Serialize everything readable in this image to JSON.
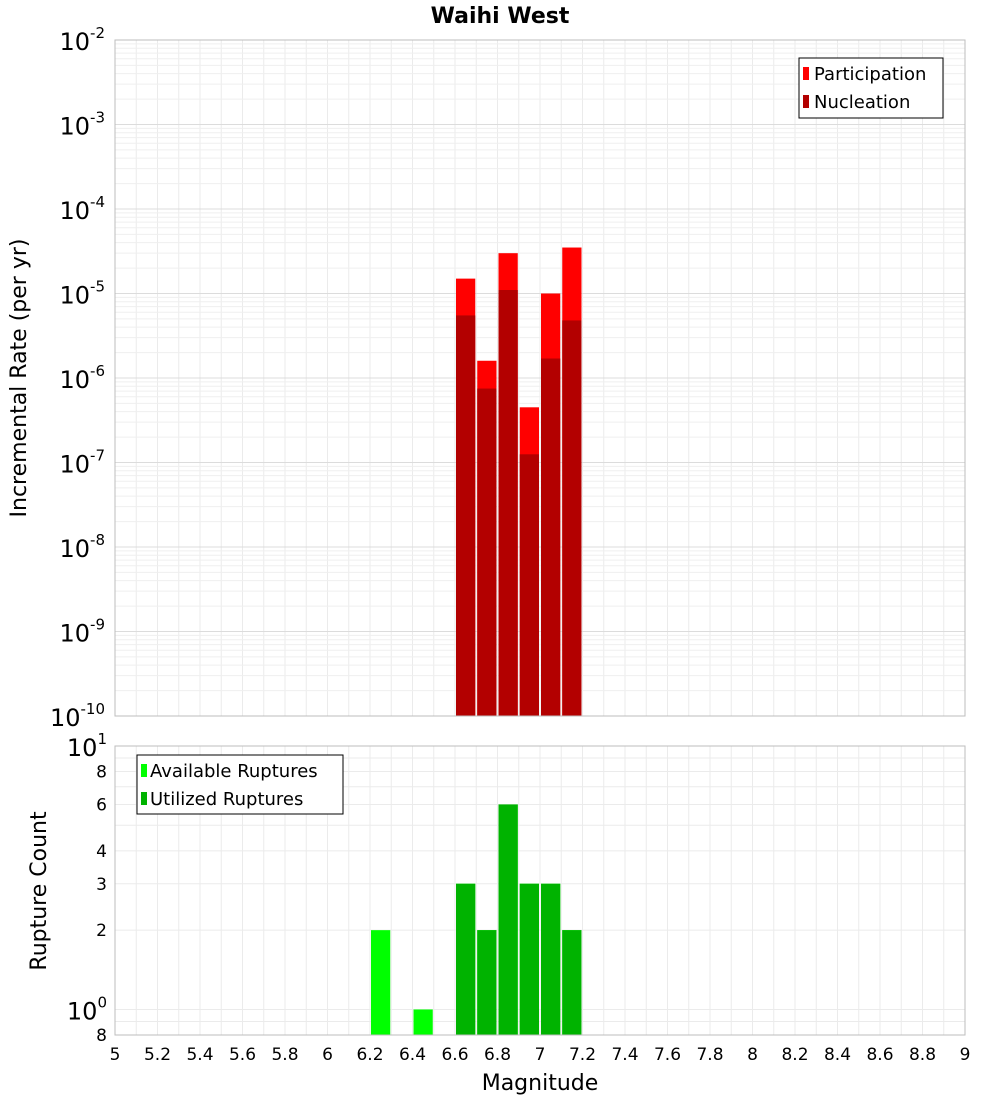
{
  "chart_data": {
    "title": "Waihi West",
    "xlabel": "Magnitude",
    "xlim": [
      5,
      9
    ],
    "xticks": [
      "5",
      "5.2",
      "5.4",
      "5.6",
      "5.8",
      "6",
      "6.2",
      "6.4",
      "6.6",
      "6.8",
      "7",
      "7.2",
      "7.4",
      "7.6",
      "7.8",
      "8",
      "8.2",
      "8.4",
      "8.6",
      "8.8",
      "9"
    ],
    "bar_width": 0.1,
    "colors": {
      "participation": "#ff0000",
      "nucleation": "#b30000",
      "available": "#00ff00",
      "utilized": "#00b300"
    },
    "charts": [
      {
        "type": "bar",
        "ylabel": "Incremental Rate (per yr)",
        "yscale": "log",
        "ylim": [
          1e-10,
          0.01
        ],
        "yticks": [
          {
            "base": "10",
            "exp": "-2"
          },
          {
            "base": "10",
            "exp": "-3"
          },
          {
            "base": "10",
            "exp": "-4"
          },
          {
            "base": "10",
            "exp": "-5"
          },
          {
            "base": "10",
            "exp": "-6"
          },
          {
            "base": "10",
            "exp": "-7"
          },
          {
            "base": "10",
            "exp": "-8"
          },
          {
            "base": "10",
            "exp": "-9"
          },
          {
            "base": "10",
            "exp": "-10"
          }
        ],
        "legend_position": "top-right",
        "series": [
          {
            "name": "Participation",
            "x": [
              6.65,
              6.75,
              6.85,
              6.95,
              7.05,
              7.15
            ],
            "values": [
              1.5e-05,
              1.6e-06,
              3e-05,
              4.5e-07,
              1e-05,
              3.5e-05
            ]
          },
          {
            "name": "Nucleation",
            "x": [
              6.65,
              6.75,
              6.85,
              6.95,
              7.05,
              7.15
            ],
            "values": [
              5.5e-06,
              7.5e-07,
              1.1e-05,
              1.25e-07,
              1.7e-06,
              4.8e-06
            ]
          }
        ]
      },
      {
        "type": "bar",
        "ylabel": "Rupture Count",
        "yscale": "log",
        "ylim": [
          0.8,
          10
        ],
        "yticks": [
          {
            "base": "10",
            "exp": "1",
            "value": 10
          },
          {
            "base": "8",
            "exp": "",
            "value": 8
          },
          {
            "base": "6",
            "exp": "",
            "value": 6
          },
          {
            "base": "4",
            "exp": "",
            "value": 4
          },
          {
            "base": "3",
            "exp": "",
            "value": 3
          },
          {
            "base": "2",
            "exp": "",
            "value": 2
          },
          {
            "base": "10",
            "exp": "0",
            "value": 1
          },
          {
            "base": "8",
            "exp": "",
            "value": 0.8
          }
        ],
        "legend_position": "top-left",
        "series": [
          {
            "name": "Available Ruptures",
            "x": [
              6.25,
              6.45,
              6.65,
              6.75,
              6.85,
              6.95,
              7.05,
              7.15
            ],
            "values": [
              2,
              1,
              3,
              2,
              6,
              3,
              3,
              2
            ]
          },
          {
            "name": "Utilized Ruptures",
            "x": [
              6.65,
              6.75,
              6.85,
              6.95,
              7.05,
              7.15
            ],
            "values": [
              3,
              2,
              6,
              3,
              3,
              2
            ]
          }
        ]
      }
    ]
  }
}
